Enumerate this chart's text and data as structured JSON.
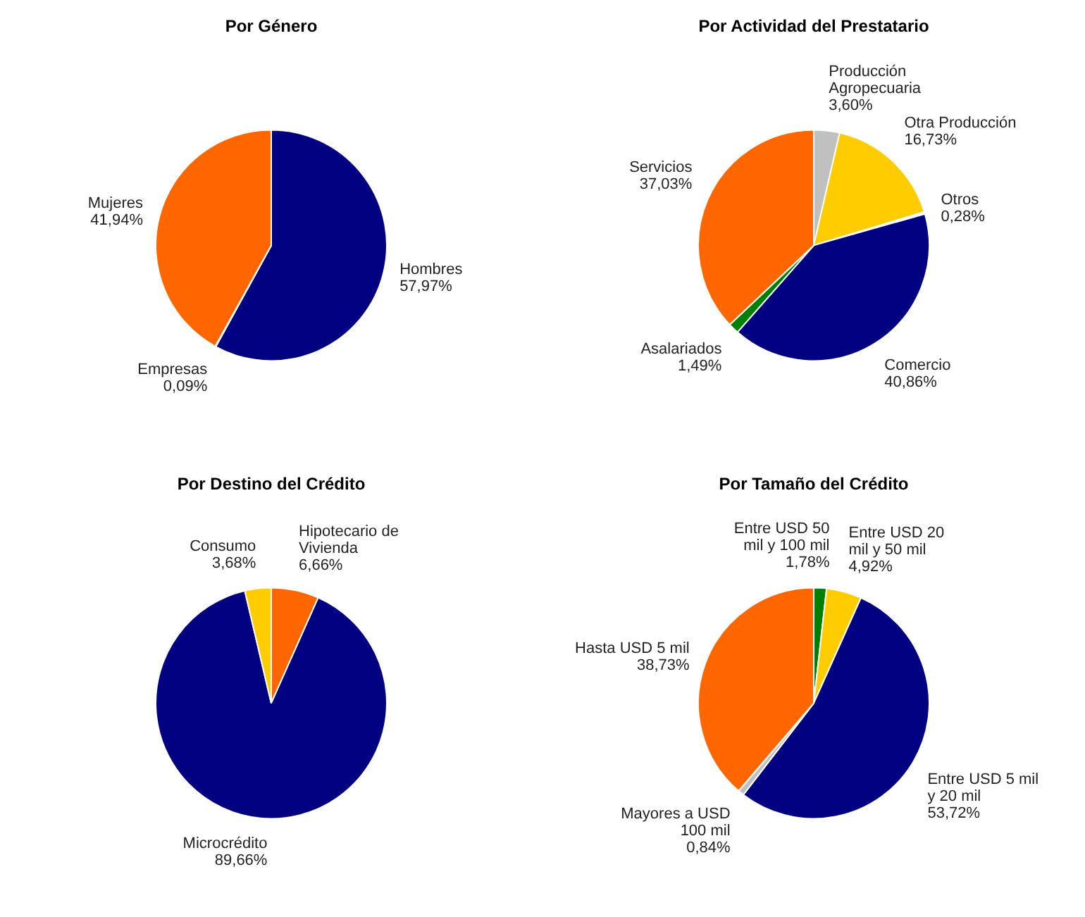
{
  "chart_data": [
    {
      "type": "pie",
      "title": "Por Género",
      "categories": [
        "Hombres",
        "Empresas",
        "Mujeres"
      ],
      "values": [
        57.97,
        0.09,
        41.94
      ],
      "value_labels": [
        "57,97%",
        "0,09%",
        "41,94%"
      ],
      "colors": [
        "#000080",
        "#ffffff",
        "#ff6600"
      ],
      "legend": false
    },
    {
      "type": "pie",
      "title": "Por Actividad del Prestatario",
      "categories": [
        "Producción Agropecuaria",
        "Otra Producción",
        "Otros",
        "Comercio",
        "Asalariados",
        "Servicios"
      ],
      "values": [
        3.6,
        16.73,
        0.28,
        40.86,
        1.49,
        37.03
      ],
      "value_labels": [
        "3,60%",
        "16,73%",
        "0,28%",
        "40,86%",
        "1,49%",
        "37,03%"
      ],
      "colors": [
        "#c0c0c0",
        "#ffcc00",
        "#f2f2f2",
        "#000080",
        "#008000",
        "#ff6600"
      ],
      "legend": false
    },
    {
      "type": "pie",
      "title": "Por Destino del Crédito",
      "categories": [
        "Hipotecario de Vivienda",
        "Microcrédito",
        "Consumo"
      ],
      "values": [
        6.66,
        89.66,
        3.68
      ],
      "value_labels": [
        "6,66%",
        "89,66%",
        "3,68%"
      ],
      "colors": [
        "#ff6600",
        "#000080",
        "#ffcc00"
      ],
      "legend": false
    },
    {
      "type": "pie",
      "title": "Por Tamaño del Crédito",
      "categories": [
        "Entre USD 50 mil y 100 mil",
        "Entre USD 20 mil y 50 mil",
        "Entre USD 5 mil y 20 mil",
        "Mayores a USD 100 mil",
        "Hasta USD 5 mil"
      ],
      "values": [
        1.78,
        4.92,
        53.72,
        0.84,
        38.73
      ],
      "value_labels": [
        "1,78%",
        "4,92%",
        "53,72%",
        "0,84%",
        "38,73%"
      ],
      "colors": [
        "#008000",
        "#ffcc00",
        "#000080",
        "#c0c0c0",
        "#ff6600"
      ],
      "legend": false
    }
  ]
}
